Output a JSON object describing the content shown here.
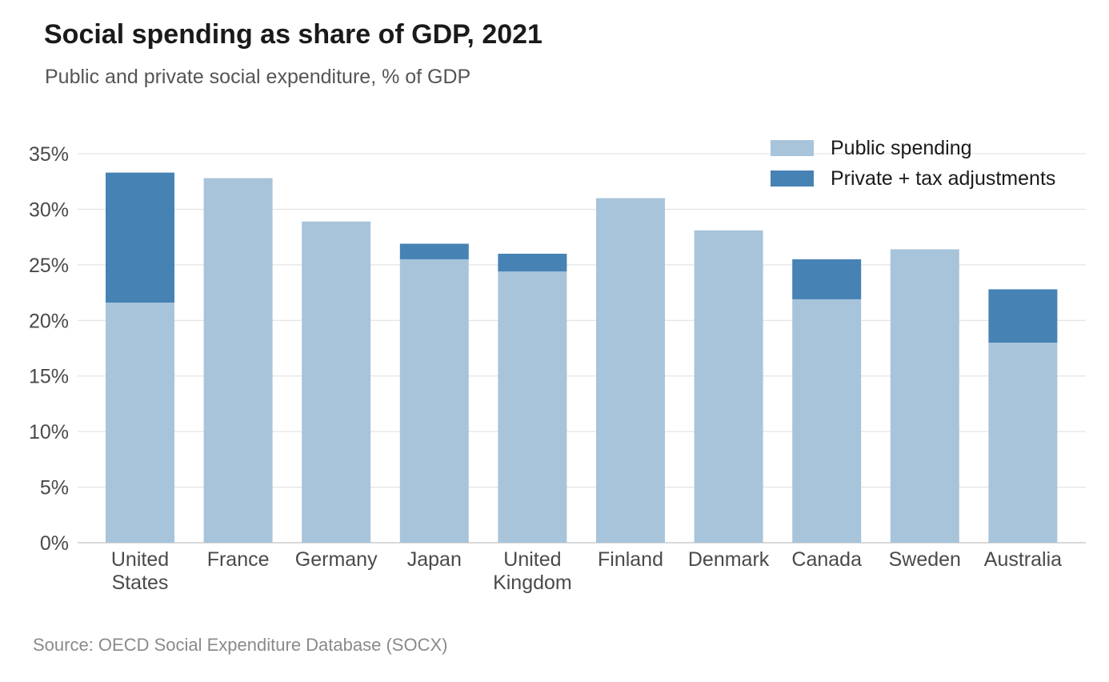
{
  "title": "Social spending as share of GDP, 2021",
  "subtitle": "Public and private social expenditure, % of GDP",
  "source": "Source: OECD Social Expenditure Database (SOCX)",
  "colors": {
    "public": "#a8c4da",
    "private": "#4682b4",
    "grid": "#dddddd",
    "axis": "#cccccc"
  },
  "chart_data": {
    "type": "bar",
    "stacked": true,
    "categories": [
      [
        "United",
        "States"
      ],
      [
        "France"
      ],
      [
        "Germany"
      ],
      [
        "Japan"
      ],
      [
        "United",
        "Kingdom"
      ],
      [
        "Finland"
      ],
      [
        "Denmark"
      ],
      [
        "Canada"
      ],
      [
        "Sweden"
      ],
      [
        "Australia"
      ]
    ],
    "series": [
      {
        "name": "Public spending",
        "values": [
          21.6,
          32.8,
          28.9,
          25.5,
          24.4,
          31.0,
          28.1,
          21.9,
          26.4,
          18.0
        ]
      },
      {
        "name": "Private + tax adjustments",
        "values": [
          11.7,
          0,
          0,
          1.4,
          1.6,
          0,
          0,
          3.6,
          0,
          4.8
        ]
      }
    ],
    "ylim": [
      0,
      35
    ],
    "yticks": [
      0,
      5,
      10,
      15,
      20,
      25,
      30,
      35
    ],
    "ytick_suffix": "%",
    "grid": true,
    "legend_position": "top-right"
  }
}
